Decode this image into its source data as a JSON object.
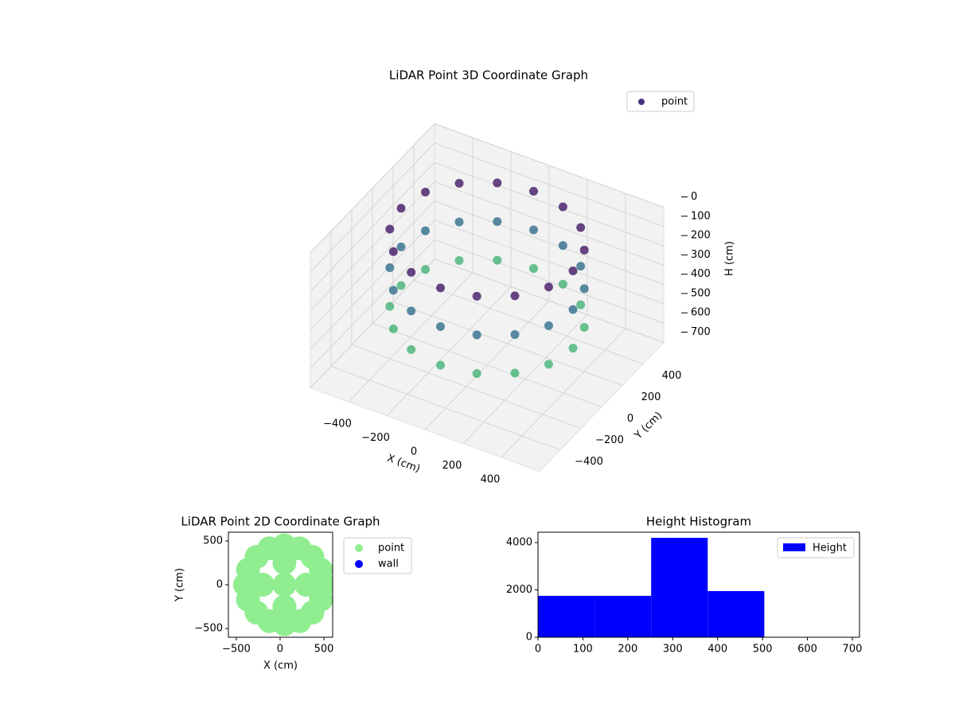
{
  "chart_data": [
    {
      "type": "scatter3d",
      "title": "LiDAR Point 3D Coordinate Graph",
      "xlabel": "X (cm)",
      "ylabel": "Y (cm)",
      "zlabel": "H (cm)",
      "xlim": [
        -600,
        600
      ],
      "ylim": [
        -600,
        600
      ],
      "zlim": [
        0,
        700
      ],
      "z_inverted": true,
      "xticks": [
        {
          "value": -400,
          "label": "−400"
        },
        {
          "value": -200,
          "label": "−200"
        },
        0,
        200,
        400
      ],
      "yticks": [
        {
          "value": -400,
          "label": "−400"
        },
        {
          "value": -200,
          "label": "−200"
        },
        0,
        200,
        400
      ],
      "zticks": [
        0,
        100,
        200,
        300,
        400,
        500,
        600,
        700
      ],
      "colormap": "viridis",
      "grid": true,
      "legend": "upper right",
      "series": [
        {
          "name": "point",
          "color": "#46327e",
          "x": [
            450,
            416,
            318,
            172,
            0,
            -172,
            -318,
            -416,
            -450,
            -416,
            -318,
            -172,
            0,
            172,
            318,
            416,
            450,
            416,
            318,
            172,
            0,
            -172,
            -318,
            -416,
            -450,
            -416,
            -318,
            -172,
            0,
            172,
            318,
            416,
            450,
            416,
            318,
            172,
            0,
            -172,
            -318,
            -416,
            -450,
            -416,
            -318,
            -172,
            0,
            172,
            318,
            416
          ],
          "y": [
            0,
            172,
            318,
            416,
            450,
            416,
            318,
            172,
            0,
            -172,
            -318,
            -416,
            -450,
            -416,
            -318,
            -172,
            0,
            172,
            318,
            416,
            450,
            416,
            318,
            172,
            0,
            -172,
            -318,
            -416,
            -450,
            -416,
            -318,
            -172,
            0,
            172,
            318,
            416,
            450,
            416,
            318,
            172,
            0,
            -172,
            -318,
            -416,
            -450,
            -416,
            -318,
            -172
          ],
          "z": [
            50,
            50,
            50,
            50,
            50,
            50,
            50,
            50,
            50,
            50,
            50,
            50,
            50,
            50,
            50,
            50,
            250,
            250,
            250,
            250,
            250,
            250,
            250,
            250,
            250,
            250,
            250,
            250,
            250,
            250,
            250,
            250,
            450,
            450,
            450,
            450,
            450,
            450,
            450,
            450,
            450,
            450,
            450,
            450,
            450,
            450,
            450,
            450
          ]
        }
      ]
    },
    {
      "type": "scatter",
      "title": "LiDAR Point 2D Coordinate Graph",
      "xlabel": "X (cm)",
      "ylabel": "Y (cm)",
      "xlim": [
        -590,
        600
      ],
      "ylim": [
        -600,
        600
      ],
      "xticks": [
        {
          "value": -500,
          "label": "−500"
        },
        0,
        500
      ],
      "yticks": [
        {
          "value": -500,
          "label": "−500"
        },
        0,
        500
      ],
      "legend": "outside right",
      "series": [
        {
          "name": "point",
          "color": "#90ee90",
          "x": [
            500,
            466,
            368,
            222,
            50,
            -122,
            -268,
            -366,
            -400,
            -366,
            -268,
            -122,
            50,
            222,
            368,
            466,
            300,
            50,
            -200,
            50,
            50
          ],
          "y": [
            0,
            172,
            318,
            416,
            450,
            416,
            318,
            172,
            0,
            -172,
            -318,
            -416,
            -450,
            -416,
            -318,
            -172,
            0,
            250,
            0,
            -250,
            0
          ]
        },
        {
          "name": "wall",
          "color": "#0000ff",
          "x": [],
          "y": []
        }
      ]
    },
    {
      "type": "histogram",
      "title": "Height Histogram",
      "bins": [
        0,
        126,
        252,
        378,
        504,
        630
      ],
      "xlim": [
        0,
        716
      ],
      "ylim": [
        0,
        4437
      ],
      "xticks": [
        0,
        100,
        200,
        300,
        400,
        500,
        600,
        700
      ],
      "yticks": [
        0,
        2000,
        4000
      ],
      "legend": "upper right",
      "series": [
        {
          "name": "Height",
          "color": "#0000ff",
          "values": [
            1750,
            1750,
            4200,
            1950,
            1
          ]
        }
      ]
    }
  ]
}
